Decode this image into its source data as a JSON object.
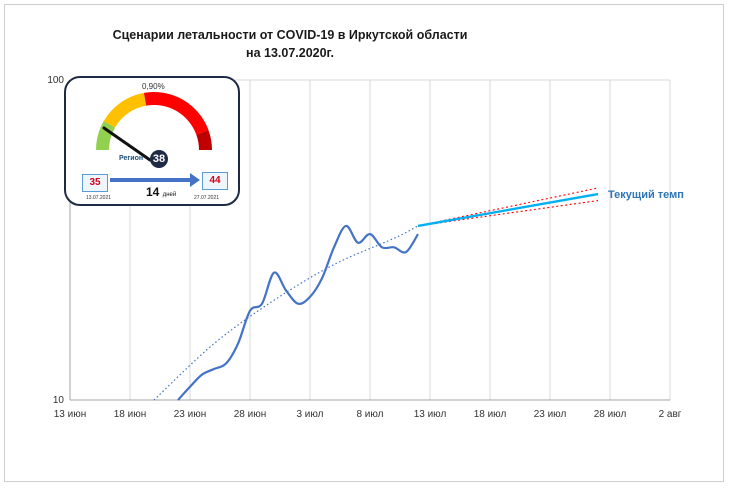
{
  "chart_data": {
    "type": "line",
    "title_line1": "Сценарии летальности от COVID-19 в Иркутской области",
    "title_line2": "на 13.07.2020г.",
    "x_ticks": [
      "13 июн",
      "18 июн",
      "23 июн",
      "28 июн",
      "3 июл",
      "8 июл",
      "13 июл",
      "18 июл",
      "23 июл",
      "28 июл",
      "2 авг"
    ],
    "x_range": [
      "2020-06-13",
      "2020-08-02"
    ],
    "y_scale": "log",
    "y_range": [
      10,
      100
    ],
    "y_ticks": [
      "10",
      "100"
    ],
    "grid": "vertical",
    "series": [
      {
        "color": "#4472c4",
        "x": [
          "2020-06-22",
          "2020-06-23",
          "2020-06-24",
          "2020-06-25",
          "2020-06-26",
          "2020-06-27",
          "2020-06-28",
          "2020-06-29",
          "2020-06-30",
          "2020-07-01",
          "2020-07-02",
          "2020-07-03",
          "2020-07-04",
          "2020-07-05",
          "2020-07-06",
          "2020-07-07",
          "2020-07-08",
          "2020-07-09",
          "2020-07-10",
          "2020-07-11",
          "2020-07-12"
        ],
        "y": [
          10,
          11,
          12,
          12.5,
          13,
          15,
          19,
          20,
          25,
          22,
          20,
          21,
          24,
          30,
          35,
          31,
          33,
          30,
          30,
          29,
          33
        ]
      },
      {
        "name": "Текущий темп",
        "color": "#00b0f0",
        "x": [
          "2020-07-12",
          "2020-07-27"
        ],
        "y": [
          35,
          44
        ]
      }
    ],
    "trend": {
      "color": "#4472c4",
      "x": [
        "2020-06-20",
        "2020-06-25",
        "2020-06-30",
        "2020-07-05",
        "2020-07-10",
        "2020-07-12"
      ],
      "y": [
        10,
        15,
        20.5,
        26.5,
        32,
        35
      ]
    },
    "forecast_band": {
      "color": "#ff0000",
      "x": [
        "2020-07-12",
        "2020-07-27"
      ],
      "upper": [
        35,
        46
      ],
      "lower": [
        35,
        42
      ]
    }
  },
  "inset": {
    "gauge_pct": "0,90%",
    "region_label": "Регион",
    "region_value": "38",
    "start_value": "35",
    "end_value": "44",
    "days": "14",
    "days_unit": "дней",
    "start_date": "13.07.2021",
    "end_date": "27.07.2021",
    "gauge_colors": [
      "#92d050",
      "#ffc000",
      "#ff0000",
      "#c00000"
    ]
  }
}
